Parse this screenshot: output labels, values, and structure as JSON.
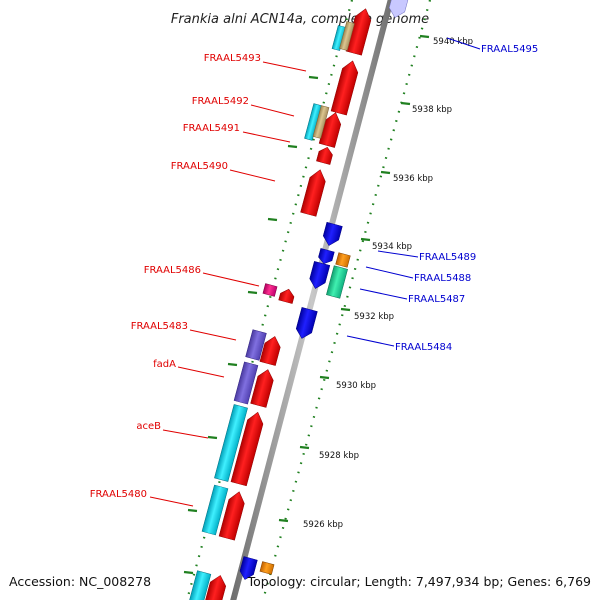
{
  "title": "Frankia alni ACN14a, complete genome",
  "accession_text": "Accession: NC_008278",
  "summary_text": "Topology: circular; Length: 7,497,934 bp; Genes: 6,769",
  "colors": {
    "forward": "#ff0000",
    "reverse": "#0000ff",
    "cyan": "#00e5ff",
    "purple": "#6a5acd",
    "tan": "#c8b074",
    "orange": "#ff8c00",
    "magenta": "#ff1493",
    "teal": "#20e0a0",
    "backbone": "#8c8c8c",
    "tick": "#208020"
  },
  "ruler": {
    "labels": [
      "5926 kbp",
      "5928 kbp",
      "5930 kbp",
      "5932 kbp",
      "5934 kbp",
      "5936 kbp",
      "5938 kbp",
      "5940 kbp"
    ]
  },
  "left_labels": [
    "FRAAL5493",
    "FRAAL5492",
    "FRAAL5491",
    "FRAAL5490",
    "FRAAL5486",
    "FRAAL5483",
    "fadA",
    "aceB",
    "FRAAL5480"
  ],
  "right_labels": [
    "FRAAL5495",
    "FRAAL5489",
    "FRAAL5488",
    "FRAAL5487",
    "FRAAL5484"
  ]
}
